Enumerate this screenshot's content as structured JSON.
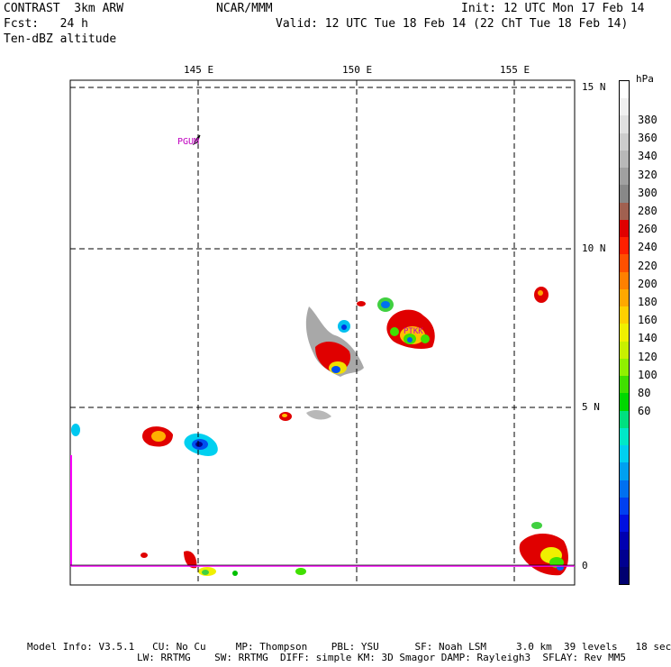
{
  "header": {
    "left_line1": "CONTRAST  3km ARW",
    "left_line2": "Fcst:   24 h",
    "left_line3": "Ten-dBZ altitude",
    "center": "NCAR/MMM",
    "right_line1": "Init: 12 UTC Mon 17 Feb 14",
    "right_line2": "Valid: 12 UTC Tue 18 Feb 14 (22 ChT Tue 18 Feb 14)"
  },
  "map": {
    "lon_labels": [
      "145 E",
      "150 E",
      "155 E"
    ],
    "lat_labels": [
      "15 N",
      "10 N",
      "5 N",
      "0"
    ],
    "stations": [
      "PGUM",
      "PTKK"
    ],
    "station_color": "#c000c0",
    "equator_color": "#ff00ff"
  },
  "colorbar": {
    "unit": "hPa",
    "labels": [
      "380",
      "360",
      "340",
      "320",
      "300",
      "280",
      "260",
      "240",
      "220",
      "200",
      "180",
      "160",
      "140",
      "120",
      "100",
      "80",
      "60"
    ],
    "colors": [
      "#ffffff",
      "#f0f0f0",
      "#e0e0e0",
      "#cccccc",
      "#b8b8b8",
      "#a0a0a0",
      "#888888",
      "#a06050",
      "#e00000",
      "#ff2000",
      "#ff5000",
      "#ff8000",
      "#ffa800",
      "#ffd000",
      "#f0f000",
      "#c8f000",
      "#90f000",
      "#40e000",
      "#00d800",
      "#00e080",
      "#00e8c8",
      "#00d0f0",
      "#00a0f0",
      "#0070f0",
      "#0040f0",
      "#0010e0",
      "#0000b0",
      "#000090",
      "#000070"
    ]
  },
  "footer": {
    "line1": "Model Info: V3.5.1   CU: No Cu     MP: Thompson    PBL: YSU      SF: Noah LSM     3.0 km  39 levels   18 sec",
    "line2": "LW: RRTMG    SW: RRTMG  DIFF: simple KM: 3D Smagor DAMP: Rayleigh3  SFLAY: Rev MM5"
  }
}
